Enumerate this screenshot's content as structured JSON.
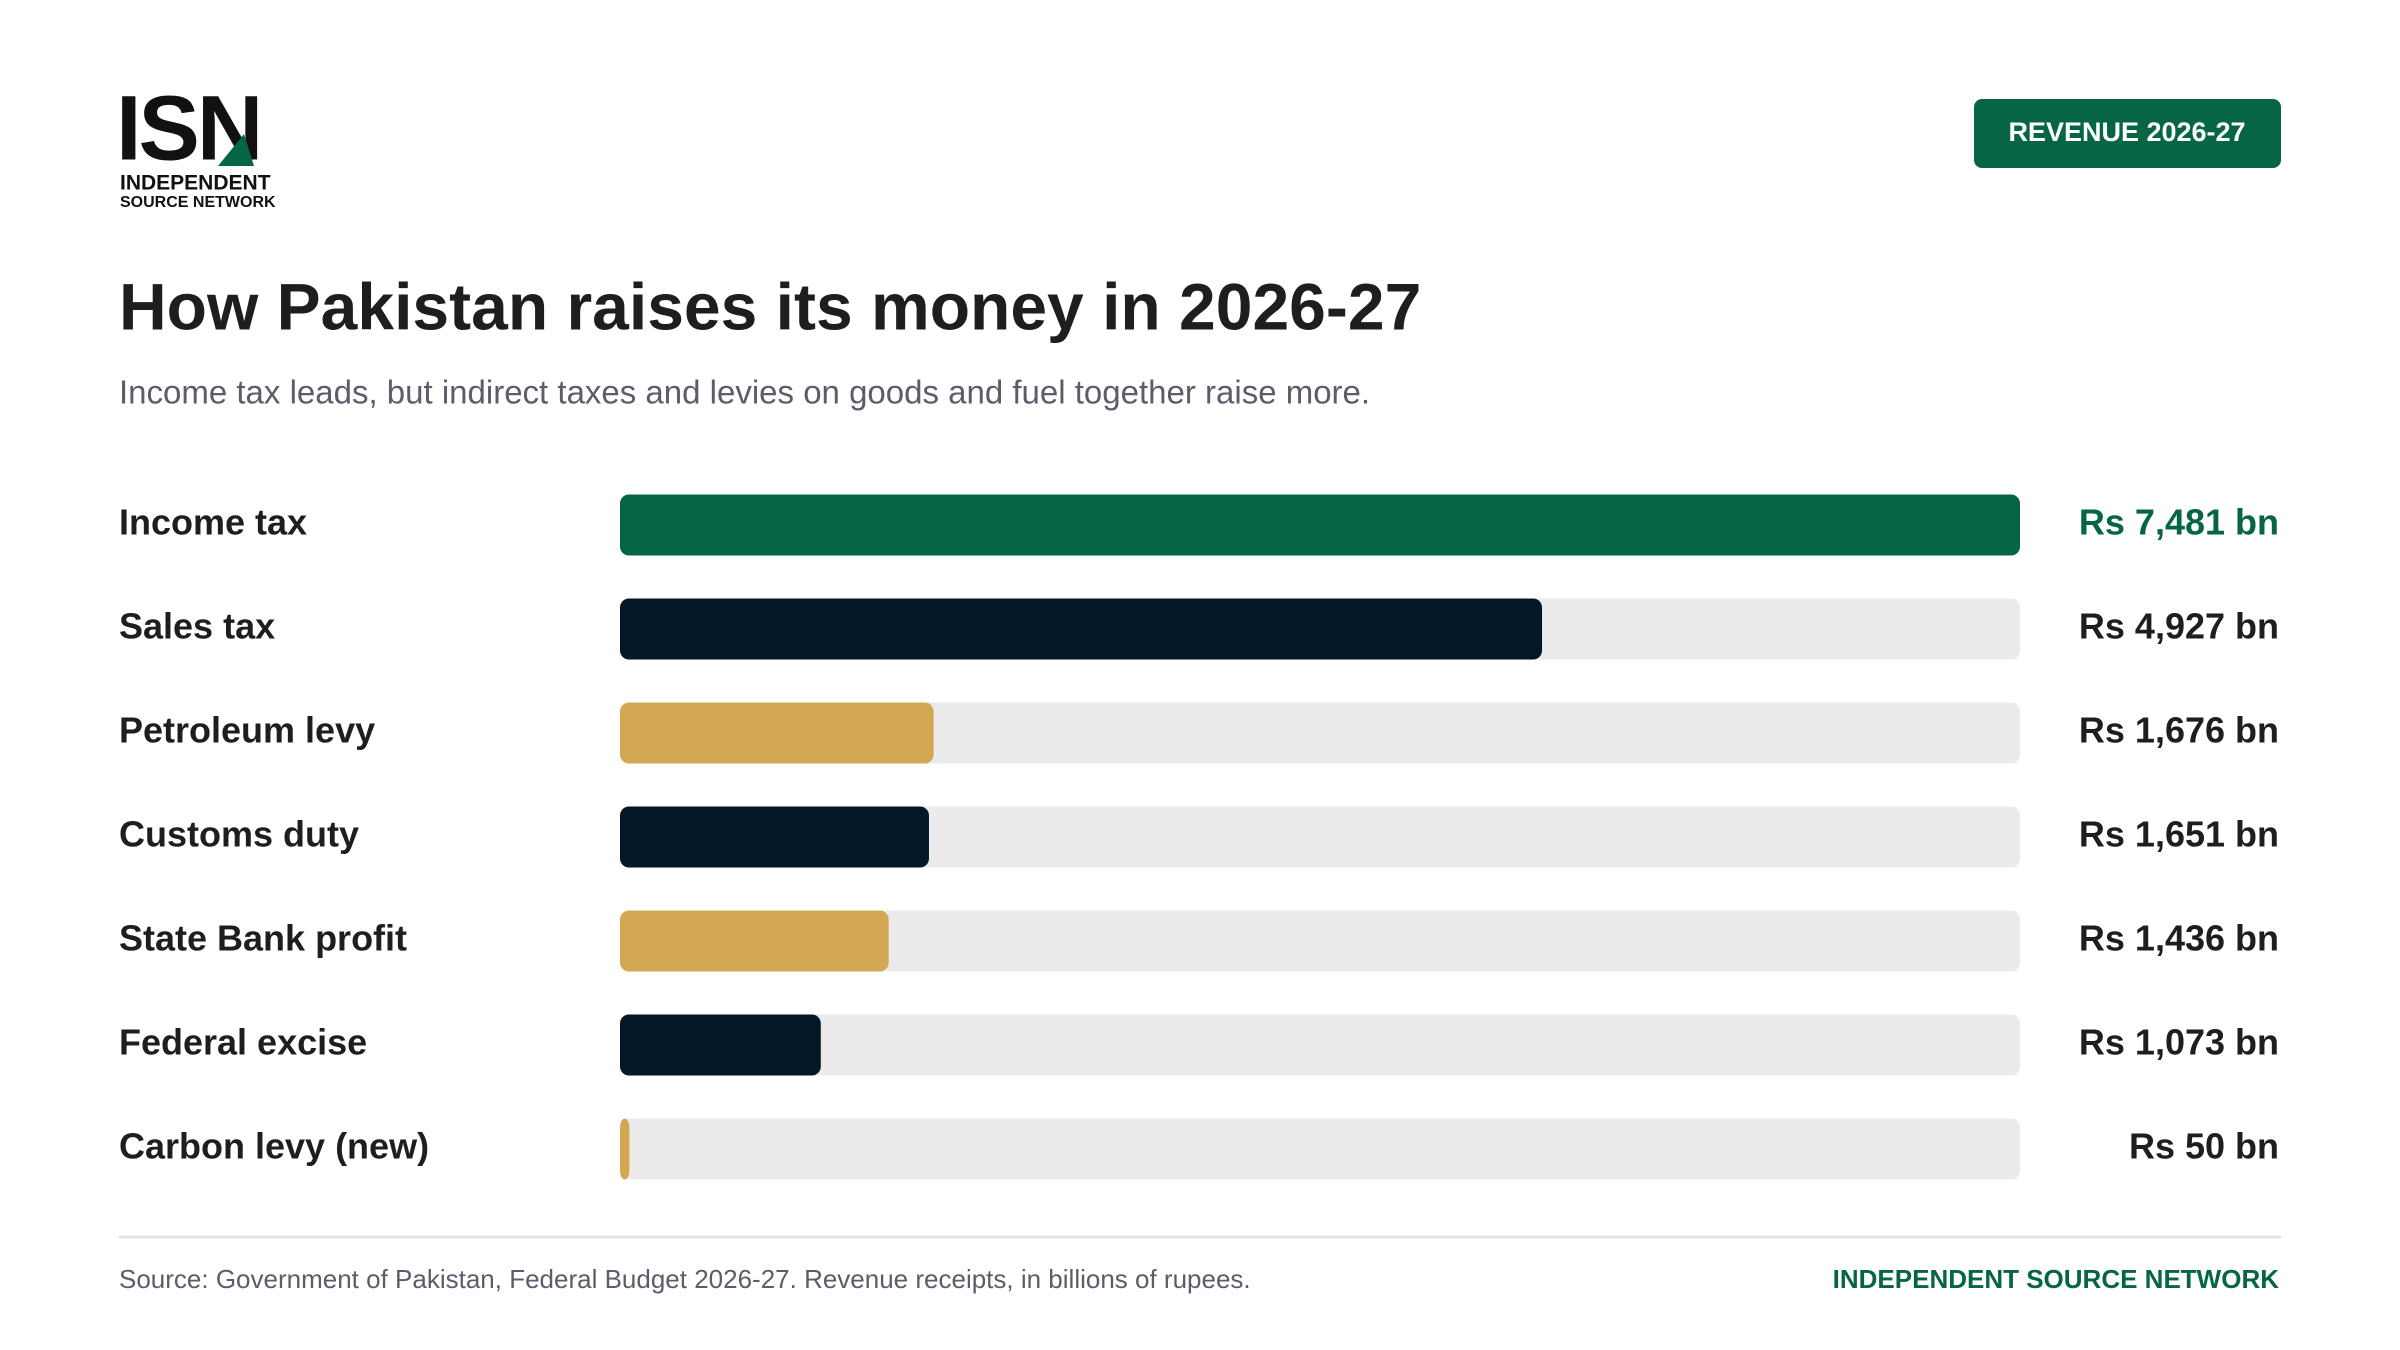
{
  "header": {
    "logo": "ISN",
    "logo_line1": "INDEPENDENT",
    "logo_line2": "SOURCE NETWORK",
    "badge": "REVENUE 2026-27"
  },
  "chart_data": {
    "type": "bar",
    "orientation": "horizontal",
    "title": "How Pakistan raises its money in 2026-27",
    "subtitle": "Income tax leads, but indirect taxes and levies on goods and fuel together raise more.",
    "categories": [
      "Income tax",
      "Sales tax",
      "Petroleum levy",
      "Customs duty",
      "State Bank profit",
      "Federal excise",
      "Carbon levy (new)"
    ],
    "values": [
      7481,
      4927,
      1676,
      1651,
      1436,
      1073,
      50
    ],
    "value_labels": [
      "Rs 7,481 bn",
      "Rs 4,927 bn",
      "Rs 1,676 bn",
      "Rs 1,651 bn",
      "Rs 1,436 bn",
      "Rs 1,073 bn",
      "Rs 50 bn"
    ],
    "colors": [
      "#066644",
      "#041726",
      "#d4a853",
      "#041726",
      "#d4a853",
      "#041726",
      "#d4a853"
    ],
    "value_label_colors": [
      "#066644",
      "#1e1e1e",
      "#1e1e1e",
      "#1e1e1e",
      "#1e1e1e",
      "#1e1e1e",
      "#1e1e1e"
    ],
    "track_color": "#ebebeb",
    "xlim": [
      0,
      7481
    ]
  },
  "footer": {
    "source": "Source: Government of Pakistan, Federal Budget 2026-27. Revenue receipts, in billions of rupees.",
    "brand": "INDEPENDENT SOURCE NETWORK"
  }
}
